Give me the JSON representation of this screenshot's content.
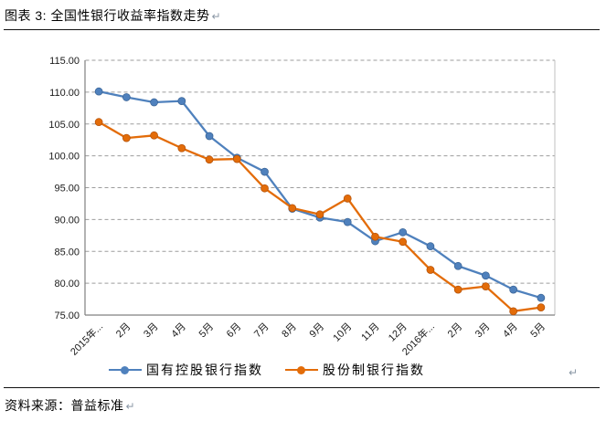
{
  "page": {
    "title": "图表 3: 全国性银行收益率指数走势",
    "source": "资料来源：普益标准",
    "pilcrow": "↵"
  },
  "chart_data": {
    "type": "line",
    "title": "",
    "xlabel": "",
    "ylabel": "",
    "categories": [
      "2015年...",
      "2月",
      "3月",
      "4月",
      "5月",
      "6月",
      "7月",
      "8月",
      "9月",
      "10月",
      "11月",
      "12月",
      "2016年...",
      "2月",
      "3月",
      "4月",
      "5月"
    ],
    "series": [
      {
        "name": "国有控股银行指数",
        "color": "#4F81BD",
        "marker_stroke": "#3A6496",
        "values": [
          110.1,
          109.2,
          108.4,
          108.6,
          103.1,
          99.7,
          97.5,
          91.7,
          90.3,
          89.6,
          86.6,
          88.0,
          85.8,
          82.7,
          81.2,
          79.0,
          77.7
        ]
      },
      {
        "name": "股份制银行指数",
        "color": "#E36C09",
        "marker_stroke": "#B5530B",
        "values": [
          105.3,
          102.8,
          103.2,
          101.2,
          99.4,
          99.5,
          94.9,
          91.8,
          90.8,
          93.3,
          87.3,
          86.5,
          82.1,
          79.0,
          79.5,
          75.6,
          76.2
        ]
      }
    ],
    "ylim": [
      75,
      115
    ],
    "y_ticks": [
      "115.00",
      "110.00",
      "105.00",
      "100.00",
      "95.00",
      "90.00",
      "85.00",
      "80.00",
      "75.00"
    ],
    "grid": "horizontal-dashed",
    "grid_color": "#9d9d9d",
    "axis_color": "#808080",
    "legend_position": "bottom",
    "x_tick_rotation": -45
  }
}
